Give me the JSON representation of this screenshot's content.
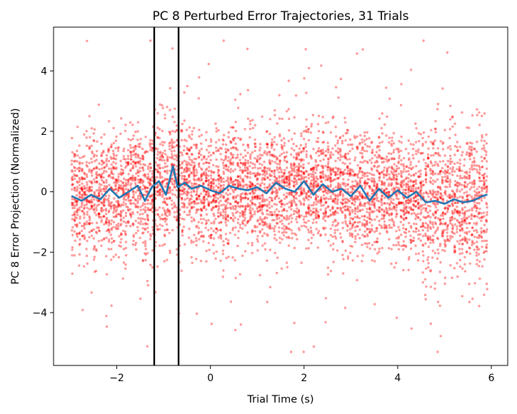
{
  "chart_data": {
    "type": "scatter",
    "title": "PC 8 Perturbed Error Trajectories, 31 Trials",
    "xlabel": "Trial Time (s)",
    "ylabel": "PC 8 Error Projection (Normalized)",
    "xlim": [
      -3.35,
      6.35
    ],
    "ylim": [
      -5.75,
      5.45
    ],
    "xticks": [
      -2,
      0,
      2,
      4,
      6
    ],
    "xtick_labels": [
      "−2",
      "0",
      "2",
      "4",
      "6"
    ],
    "yticks": [
      -4,
      -2,
      0,
      2,
      4
    ],
    "ytick_labels": [
      "−4",
      "−2",
      "0",
      "2",
      "4"
    ],
    "grid": false,
    "legend": "none",
    "vertical_lines": [
      -1.2,
      -0.68
    ],
    "vertical_line_color": "#000000",
    "scatter_color": "#ff0000",
    "scatter_alpha": 0.4,
    "mean_line_color": "#1f77b4",
    "num_trials": 31,
    "x_range": [
      -2.95,
      5.9
    ],
    "mean_series": {
      "name": "",
      "x": [
        -2.95,
        -2.75,
        -2.55,
        -2.35,
        -2.15,
        -1.95,
        -1.75,
        -1.55,
        -1.4,
        -1.25,
        -1.1,
        -0.95,
        -0.8,
        -0.7,
        -0.55,
        -0.4,
        -0.2,
        0.0,
        0.2,
        0.4,
        0.6,
        0.8,
        1.0,
        1.2,
        1.4,
        1.6,
        1.8,
        2.0,
        2.2,
        2.4,
        2.6,
        2.8,
        3.0,
        3.2,
        3.4,
        3.6,
        3.8,
        4.0,
        4.2,
        4.4,
        4.6,
        4.8,
        5.0,
        5.2,
        5.4,
        5.6,
        5.8,
        5.9
      ],
      "y": [
        -0.15,
        -0.3,
        -0.1,
        -0.25,
        0.1,
        -0.2,
        0.0,
        0.2,
        -0.3,
        0.15,
        0.35,
        -0.1,
        0.85,
        0.15,
        0.3,
        0.1,
        0.2,
        0.05,
        -0.05,
        0.2,
        0.1,
        0.05,
        0.15,
        -0.05,
        0.3,
        0.1,
        0.0,
        0.35,
        -0.1,
        0.25,
        0.0,
        0.1,
        -0.15,
        0.2,
        -0.3,
        0.1,
        -0.2,
        0.05,
        -0.2,
        0.0,
        -0.35,
        -0.3,
        -0.4,
        -0.25,
        -0.35,
        -0.3,
        -0.15,
        -0.1
      ]
    }
  }
}
